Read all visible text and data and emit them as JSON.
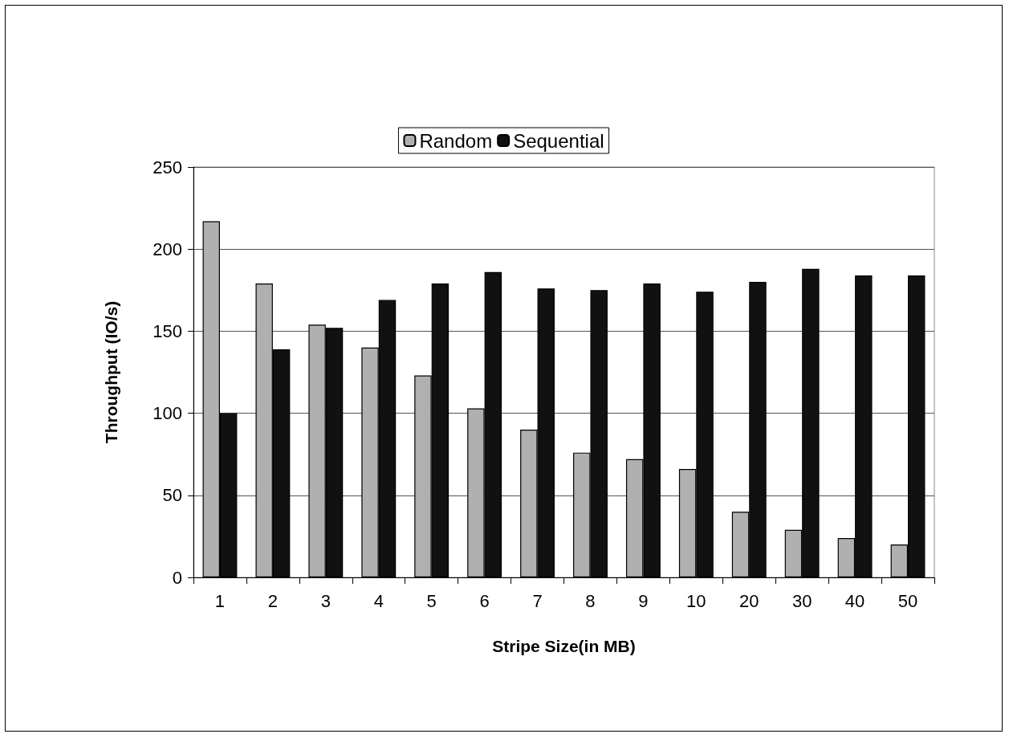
{
  "chart_data": {
    "type": "bar",
    "xlabel": "Stripe Size(in MB)",
    "ylabel": "Throughput (IO/s)",
    "categories": [
      "1",
      "2",
      "3",
      "4",
      "5",
      "6",
      "7",
      "8",
      "9",
      "10",
      "20",
      "30",
      "40",
      "50"
    ],
    "series": [
      {
        "name": "Random",
        "color": "#b0b0b0",
        "values": [
          217,
          179,
          154,
          140,
          123,
          103,
          90,
          76,
          72,
          66,
          40,
          29,
          24,
          20
        ]
      },
      {
        "name": "Sequential",
        "color": "#111111",
        "values": [
          100,
          139,
          152,
          169,
          179,
          186,
          176,
          175,
          179,
          174,
          180,
          188,
          184,
          184
        ]
      }
    ],
    "ylim": [
      0,
      250
    ],
    "yticks": [
      0,
      50,
      100,
      150,
      200,
      250
    ],
    "grid": "y",
    "legend": "top"
  }
}
